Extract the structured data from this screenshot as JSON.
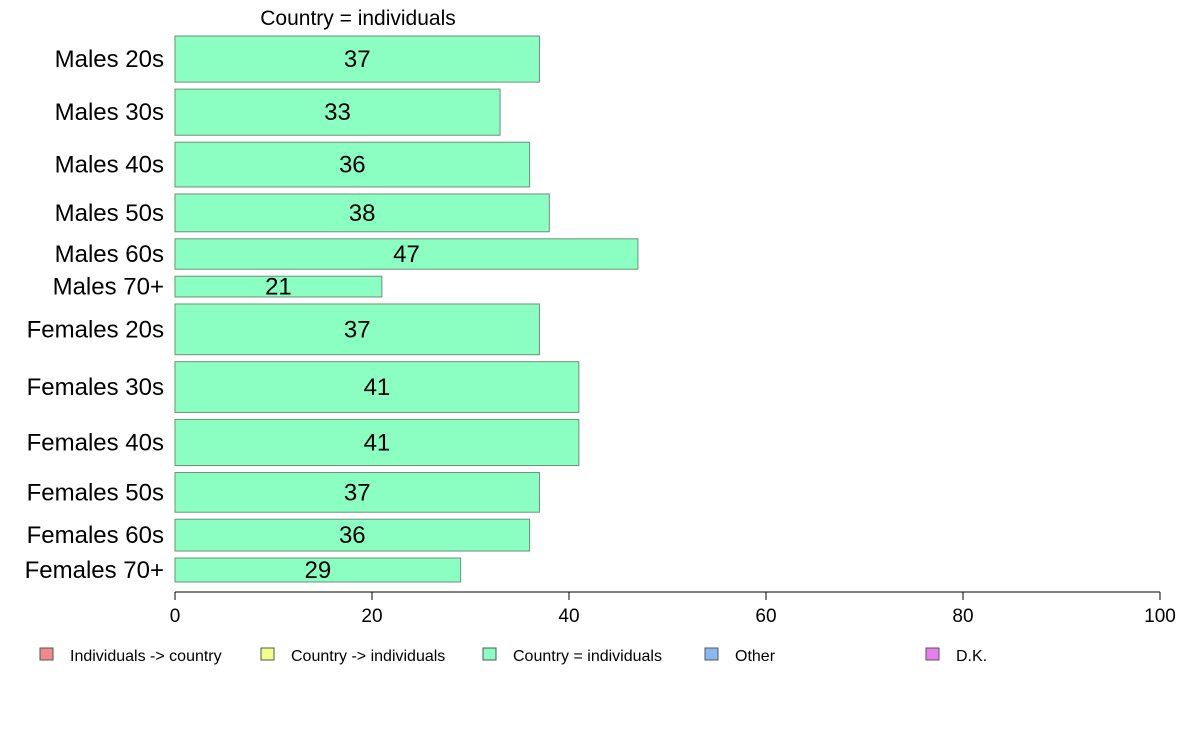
{
  "chart_data": {
    "type": "bar",
    "orientation": "horizontal",
    "title": "Country = individuals",
    "categories": [
      "Males 20s",
      "Males 30s",
      "Males 40s",
      "Males 50s",
      "Males 60s",
      "Males 70+",
      "Females 20s",
      "Females 30s",
      "Females 40s",
      "Females 50s",
      "Females 60s",
      "Females 70+"
    ],
    "series": [
      {
        "name": "Country = individuals",
        "color": "#8affc1",
        "values": [
          37,
          33,
          36,
          38,
          47,
          21,
          37,
          41,
          41,
          37,
          36,
          29
        ]
      }
    ],
    "group_weights": [
      1.0,
      1.0,
      0.97,
      0.82,
      0.66,
      0.45,
      1.1,
      1.1,
      1.0,
      0.86,
      0.69,
      0.52
    ],
    "xlim": [
      0,
      100
    ],
    "xticks": [
      0,
      20,
      40,
      60,
      80,
      100
    ],
    "grid": false,
    "legend": {
      "placement": "bottom",
      "items": [
        {
          "label": "Individuals -> country",
          "color": "#f08a8a"
        },
        {
          "label": "Country -> individuals",
          "color": "#f0ff8a"
        },
        {
          "label": "Country = individuals",
          "color": "#8affc1"
        },
        {
          "label": "Other",
          "color": "#8ab8f5"
        },
        {
          "label": "D.K.",
          "color": "#e67ef0"
        }
      ]
    }
  }
}
